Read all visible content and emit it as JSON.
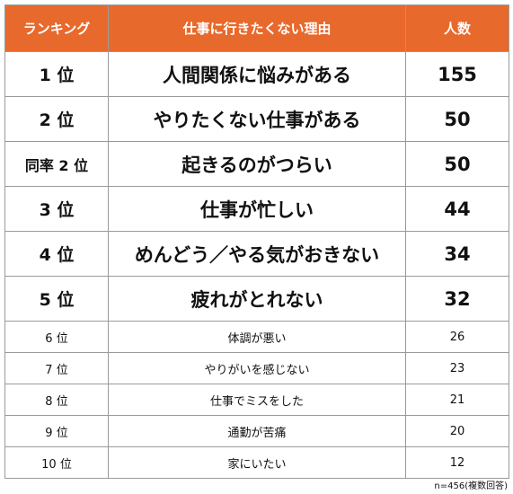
{
  "header": {
    "rank": "ランキング",
    "reason": "仕事に行きたくない理由",
    "count": "人数"
  },
  "rows": [
    {
      "rank": "1 位",
      "reason": "人間関係に悩みがある",
      "count": "155"
    },
    {
      "rank": "2 位",
      "reason": "やりたくない仕事がある",
      "count": "50"
    },
    {
      "rank": "同率 2 位",
      "reason": "起きるのがつらい",
      "count": "50"
    },
    {
      "rank": "3 位",
      "reason": "仕事が忙しい",
      "count": "44"
    },
    {
      "rank": "4 位",
      "reason": "めんどう／やる気がおきない",
      "count": "34"
    },
    {
      "rank": "5 位",
      "reason": "疲れがとれない",
      "count": "32"
    },
    {
      "rank": "6 位",
      "reason": "体調が悪い",
      "count": "26"
    },
    {
      "rank": "7 位",
      "reason": "やりがいを感じない",
      "count": "23"
    },
    {
      "rank": "8 位",
      "reason": "仕事でミスをした",
      "count": "21"
    },
    {
      "rank": "9 位",
      "reason": "通勤が苦痛",
      "count": "20"
    },
    {
      "rank": "10 位",
      "reason": "家にいたい",
      "count": "12"
    }
  ],
  "note": "n=456(複数回答)",
  "colors": {
    "header_bg": "#e8692c",
    "header_text": "#ffffff",
    "border": "#9a9a9a"
  }
}
